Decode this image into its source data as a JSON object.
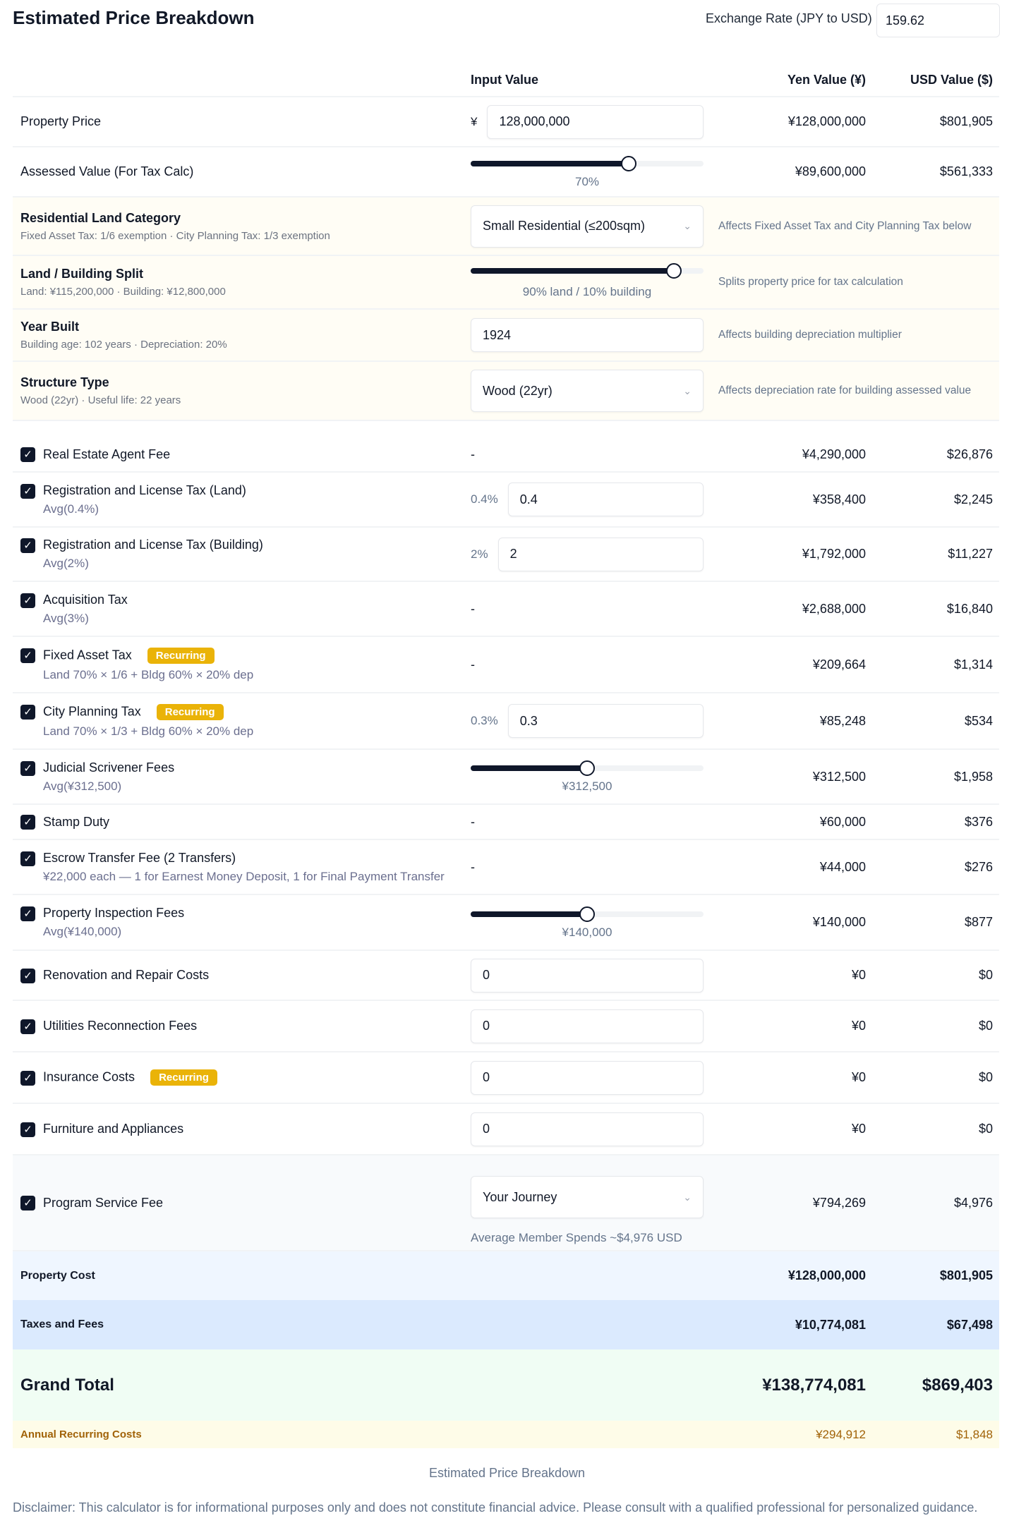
{
  "header": {
    "title": "Estimated Price Breakdown",
    "exchange_label": "Exchange Rate (JPY to USD)",
    "exchange_value": "159.62"
  },
  "columns": {
    "input": "Input Value",
    "yen": "Yen Value (¥)",
    "usd": "USD Value ($)"
  },
  "property_price": {
    "label": "Property Price",
    "prefix": "¥",
    "value": "128,000,000",
    "yen": "¥128,000,000",
    "usd": "$801,905"
  },
  "assessed": {
    "label": "Assessed Value (For Tax Calc)",
    "slider_percent": 70,
    "slider_label": "70%",
    "yen": "¥89,600,000",
    "usd": "$561,333"
  },
  "land_category": {
    "label": "Residential Land Category",
    "sub": "Fixed Asset Tax: 1/6 exemption · City Planning Tax: 1/3 exemption",
    "selected": "Small Residential (≤200sqm)",
    "note": "Affects Fixed Asset Tax and City Planning Tax below"
  },
  "split": {
    "label": "Land / Building Split",
    "sub": "Land: ¥115,200,000 · Building: ¥12,800,000",
    "land_percent": 90,
    "slider_label": "90% land / 10% building",
    "note": "Splits property price for tax calculation"
  },
  "year_built": {
    "label": "Year Built",
    "sub": "Building age: 102 years · Depreciation: 20%",
    "value": "1924",
    "note": "Affects building depreciation multiplier"
  },
  "structure": {
    "label": "Structure Type",
    "sub": "Wood (22yr) · Useful life: 22 years",
    "selected": "Wood (22yr)",
    "note": "Affects depreciation rate for building assessed value"
  },
  "items": [
    {
      "label": "Real Estate Agent Fee",
      "checked": true,
      "input": "none",
      "dash": "-",
      "yen": "¥4,290,000",
      "usd": "$26,876"
    },
    {
      "label": "Registration and License Tax (Land)",
      "sub": "Avg(0.4%)",
      "checked": true,
      "input": "pct",
      "prefix": "0.4%",
      "value": "0.4",
      "yen": "¥358,400",
      "usd": "$2,245"
    },
    {
      "label": "Registration and License Tax (Building)",
      "sub": "Avg(2%)",
      "checked": true,
      "input": "pct",
      "prefix": "2%",
      "value": "2",
      "yen": "¥1,792,000",
      "usd": "$11,227"
    },
    {
      "label": "Acquisition Tax",
      "sub": "Avg(3%)",
      "checked": true,
      "input": "none",
      "dash": "-",
      "yen": "¥2,688,000",
      "usd": "$16,840"
    },
    {
      "label": "Fixed Asset Tax",
      "badge": "Recurring",
      "sub": "Land 70% × 1/6 + Bldg 60% × 20% dep",
      "checked": true,
      "input": "none",
      "dash": "-",
      "yen": "¥209,664",
      "usd": "$1,314"
    },
    {
      "label": "City Planning Tax",
      "badge": "Recurring",
      "sub": "Land 70% × 1/3 + Bldg 60% × 20% dep",
      "checked": true,
      "input": "pct",
      "prefix": "0.3%",
      "value": "0.3",
      "yen": "¥85,248",
      "usd": "$534"
    },
    {
      "label": "Judicial Scrivener Fees",
      "sub": "Avg(¥312,500)",
      "checked": true,
      "input": "slider",
      "slider_fraction": 0.5,
      "slider_label": "¥312,500",
      "yen": "¥312,500",
      "usd": "$1,958"
    },
    {
      "label": "Stamp Duty",
      "checked": true,
      "input": "none",
      "dash": "-",
      "yen": "¥60,000",
      "usd": "$376"
    },
    {
      "label": "Escrow Transfer Fee (2 Transfers)",
      "sub": "¥22,000 each — 1 for Earnest Money Deposit, 1 for Final Payment Transfer",
      "checked": true,
      "input": "none",
      "dash": "-",
      "yen": "¥44,000",
      "usd": "$276"
    },
    {
      "label": "Property Inspection Fees",
      "sub": "Avg(¥140,000)",
      "checked": true,
      "input": "slider",
      "slider_fraction": 0.5,
      "slider_label": "¥140,000",
      "yen": "¥140,000",
      "usd": "$877"
    },
    {
      "label": "Renovation and Repair Costs",
      "checked": true,
      "input": "text",
      "value": "0",
      "yen": "¥0",
      "usd": "$0"
    },
    {
      "label": "Utilities Reconnection Fees",
      "checked": true,
      "input": "text",
      "value": "0",
      "yen": "¥0",
      "usd": "$0"
    },
    {
      "label": "Insurance Costs",
      "badge": "Recurring",
      "checked": true,
      "input": "text",
      "value": "0",
      "yen": "¥0",
      "usd": "$0"
    },
    {
      "label": "Furniture and Appliances",
      "checked": true,
      "input": "text",
      "value": "0",
      "yen": "¥0",
      "usd": "$0"
    }
  ],
  "program": {
    "label": "Program Service Fee",
    "checked": true,
    "selected": "Your Journey",
    "note": "Average Member Spends ~$4,976 USD",
    "yen": "¥794,269",
    "usd": "$4,976"
  },
  "totals": {
    "property_cost": {
      "label": "Property Cost",
      "yen": "¥128,000,000",
      "usd": "$801,905"
    },
    "taxes_fees": {
      "label": "Taxes and Fees",
      "yen": "¥10,774,081",
      "usd": "$67,498"
    },
    "grand_total": {
      "label": "Grand Total",
      "yen": "¥138,774,081",
      "usd": "$869,403"
    },
    "annual_recurring": {
      "label": "Annual Recurring Costs",
      "yen": "¥294,912",
      "usd": "$1,848"
    }
  },
  "footer": {
    "caption": "Estimated Price Breakdown",
    "disclaimer": "Disclaimer: This calculator is for informational purposes only and does not constitute financial advice. Please consult with a qualified professional for personalized guidance."
  },
  "colors": {
    "checkbox": "#0f172a",
    "badge": "#eab308",
    "setup_bg": "#fffdf5",
    "property_cost_bg": "#eff6ff",
    "taxes_bg": "#dbeafe",
    "grand_bg": "#f0fdf4",
    "annual_bg": "#fefce8",
    "annual_text": "#a16207"
  }
}
